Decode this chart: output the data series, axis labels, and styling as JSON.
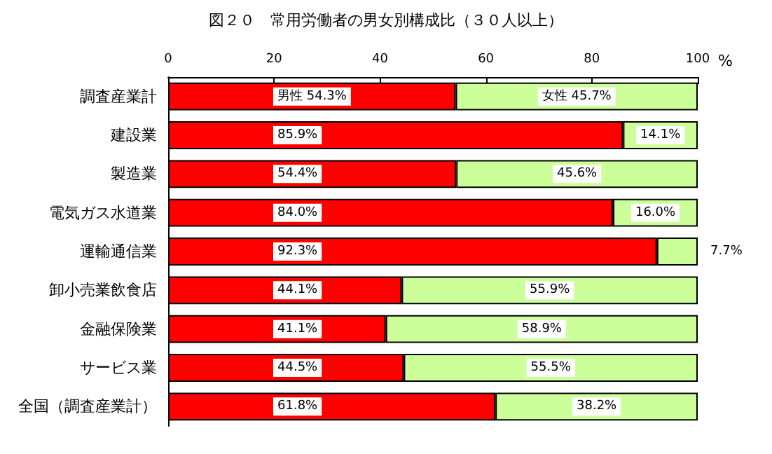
{
  "chart_data": {
    "type": "bar",
    "orientation": "horizontal",
    "stacked": true,
    "title": "図２０　常用労働者の男女別構成比（３０人以上）",
    "xlabel": "%",
    "categories": [
      "調査産業計",
      "建設業",
      "製造業",
      "電気ガス水道業",
      "運輸通信業",
      "卸小売業飲食店",
      "金融保険業",
      "サービス業",
      "全国（調査産業計）"
    ],
    "series": [
      {
        "name": "男性",
        "color": "#ff0000",
        "values": [
          54.3,
          85.9,
          54.4,
          84.0,
          92.3,
          44.1,
          41.1,
          44.5,
          61.8
        ],
        "value_labels": [
          "54.3%",
          "85.9%",
          "54.4%",
          "84.0%",
          "92.3%",
          "44.1%",
          "41.1%",
          "44.5%",
          "61.8%"
        ]
      },
      {
        "name": "女性",
        "color": "#ccff99",
        "values": [
          45.7,
          14.1,
          45.6,
          16.0,
          7.7,
          55.9,
          58.9,
          55.5,
          38.2
        ],
        "value_labels": [
          "45.7%",
          "14.1%",
          "45.6%",
          "16.0%",
          "7.7%",
          "55.9%",
          "58.9%",
          "55.5%",
          "38.2%"
        ]
      }
    ],
    "xlim": [
      0,
      100
    ],
    "xticks": [
      0,
      20,
      40,
      60,
      80,
      100
    ],
    "grid": false,
    "legend": false
  }
}
